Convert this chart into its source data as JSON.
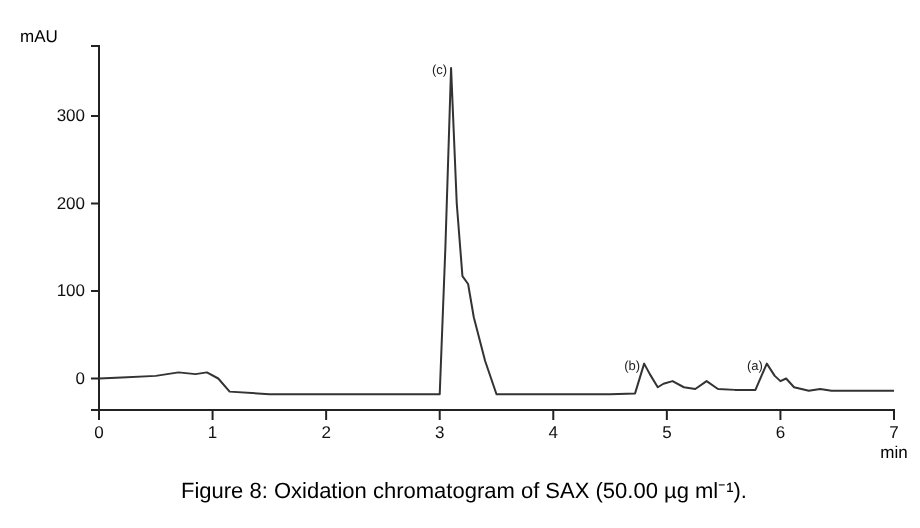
{
  "chart_data": {
    "type": "line",
    "title": "Figure 8: Oxidation chromatogram of SAX (50.00 µg ml⁻¹).",
    "xlabel": "min",
    "ylabel": "mAU",
    "x": [
      0,
      0.2,
      0.5,
      0.7,
      0.85,
      0.95,
      1.05,
      1.15,
      1.5,
      2,
      2.5,
      3.0,
      3.05,
      3.1,
      3.15,
      3.2,
      3.25,
      3.3,
      3.4,
      3.5,
      4,
      4.5,
      4.72,
      4.8,
      4.85,
      4.92,
      4.97,
      5.05,
      5.15,
      5.25,
      5.35,
      5.45,
      5.6,
      5.78,
      5.88,
      5.95,
      6.0,
      6.05,
      6.12,
      6.25,
      6.35,
      6.45,
      7
    ],
    "series": [
      {
        "color": "#333333",
        "values": [
          0,
          1,
          3,
          7,
          5,
          7,
          0,
          -15,
          -18,
          -18,
          -18,
          -18,
          150,
          355,
          200,
          117,
          108,
          70,
          20,
          -18,
          -18,
          -18,
          -17,
          17,
          5,
          -10,
          -6,
          -3,
          -10,
          -12,
          -3,
          -12,
          -13,
          -13,
          17,
          3,
          -3,
          0,
          -10,
          -14,
          -12,
          -14,
          -14
        ]
      }
    ],
    "xlim": [
      0,
      7
    ],
    "ylim": [
      -36,
      380
    ],
    "xticks": [
      0,
      1,
      2,
      3,
      4,
      5,
      6,
      7
    ],
    "yticks": [
      0,
      100,
      200,
      300
    ],
    "annotations": [
      {
        "text": "(c)",
        "x": 3.1,
        "y": 355
      },
      {
        "text": "(b)",
        "x": 4.8,
        "y": 17
      },
      {
        "text": "(a)",
        "x": 5.88,
        "y": 17
      }
    ],
    "line_style": "solid"
  }
}
